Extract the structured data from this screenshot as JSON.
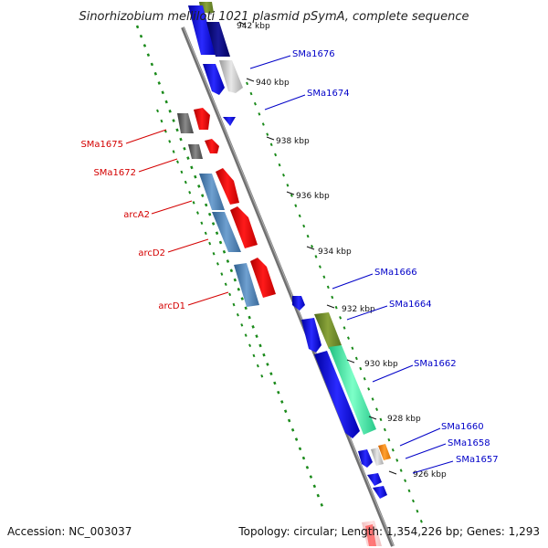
{
  "title": "Sinorhizobium melliloti 1021 plasmid pSymA, complete sequence",
  "ticks": [
    "942 kbp",
    "940 kbp",
    "938 kbp",
    "936 kbp",
    "934 kbp",
    "932 kbp",
    "930 kbp",
    "928 kbp",
    "926 kbp"
  ],
  "left_labels": [
    "SMa1675",
    "SMa1672",
    "arcA2",
    "arcD2",
    "arcD1"
  ],
  "right_labels": [
    "SMa1676",
    "SMa1674",
    "SMa1666",
    "SMa1664",
    "SMa1662",
    "SMa1660",
    "SMa1658",
    "SMa1657"
  ],
  "footer": {
    "accession": "Accession: NC_003037",
    "topology": "Topology: circular; Length: 1,354,226 bp; Genes: 1,293"
  },
  "colors": {
    "forward_cds": "#ff0000",
    "reverse_cds": "#0000ff",
    "backbone": "#808080",
    "dotted_track": "#1a8a1a",
    "left_label": "#d40000",
    "right_label": "#0000c8"
  }
}
